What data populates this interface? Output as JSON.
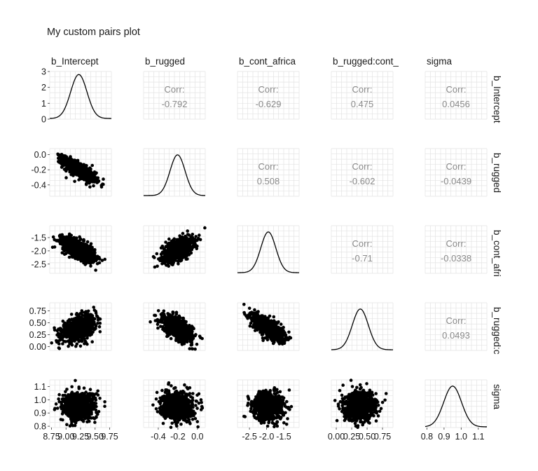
{
  "title": "My custom pairs plot",
  "variables": [
    "b_Intercept",
    "b_rugged",
    "b_cont_africa",
    "b_rugged:cont_africa",
    "sigma"
  ],
  "column_strips": [
    "b_Intercept",
    "b_rugged",
    "b_cont_africa",
    "b_rugged:cont_",
    "sigma"
  ],
  "row_strips": [
    "b_Intercept",
    "b_rugged",
    "b_cont_afri",
    "b_rugged:c",
    "sigma"
  ],
  "colors": {
    "points": "#000000",
    "grid": "#e3e3e3",
    "corr_text": "#8a8a8a",
    "text": "#1a1a1a"
  },
  "chart_data": {
    "type": "scatter",
    "subtype": "pairs-plot (scatter matrix)",
    "title": "My custom pairs plot",
    "diagonal": "density",
    "lower": "scatter",
    "upper": "correlation text",
    "grid": true,
    "corr_label": "Corr:",
    "axes": {
      "b_Intercept": {
        "range": [
          8.72,
          9.78
        ],
        "ticks": [
          8.75,
          9.0,
          9.25,
          9.5,
          9.75
        ],
        "tick_labels": [
          "8.75",
          "9.00",
          "9.25",
          "9.50",
          "9.75"
        ]
      },
      "b_rugged": {
        "range": [
          -0.55,
          0.08
        ],
        "ticks": [
          -0.4,
          -0.2,
          0.0
        ],
        "tick_labels": [
          "-0.4",
          "-0.2",
          "0.0"
        ]
      },
      "b_cont_africa": {
        "range": [
          -2.85,
          -1.05
        ],
        "ticks": [
          -2.5,
          -2.0,
          -1.5
        ],
        "tick_labels": [
          "-2.5",
          "-2.0",
          "-1.5"
        ]
      },
      "b_rugged:cont_africa": {
        "range": [
          -0.08,
          0.92
        ],
        "ticks": [
          0.0,
          0.25,
          0.5,
          0.75
        ],
        "tick_labels": [
          "0.00",
          "0.25",
          "0.50",
          "0.75"
        ]
      },
      "sigma": {
        "range": [
          0.79,
          1.15
        ],
        "ticks": [
          0.8,
          0.9,
          1.0,
          1.1
        ],
        "tick_labels": [
          "0.8",
          "0.9",
          "1.0",
          "1.1"
        ]
      }
    },
    "row_axes_labels": {
      "b_Intercept": {
        "ticks": [
          0,
          1,
          2,
          3
        ],
        "tick_labels": [
          "0",
          "1",
          "2",
          "3"
        ],
        "range": [
          0,
          3.0
        ]
      }
    },
    "marginals": [
      {
        "variable": "b_Intercept",
        "mean": 9.22,
        "sd": 0.14,
        "peak_density": 2.85
      },
      {
        "variable": "b_rugged",
        "mean": -0.203,
        "sd": 0.077
      },
      {
        "variable": "b_cont_africa",
        "mean": -1.95,
        "sd": 0.22
      },
      {
        "variable": "b_rugged:cont_africa",
        "mean": 0.39,
        "sd": 0.13
      },
      {
        "variable": "sigma",
        "mean": 0.95,
        "sd": 0.052
      }
    ],
    "correlations": [
      {
        "x": "b_Intercept",
        "y": "b_rugged",
        "value": "-0.792"
      },
      {
        "x": "b_Intercept",
        "y": "b_cont_africa",
        "value": "-0.629"
      },
      {
        "x": "b_Intercept",
        "y": "b_rugged:cont_africa",
        "value": "0.475"
      },
      {
        "x": "b_Intercept",
        "y": "sigma",
        "value": "0.0456"
      },
      {
        "x": "b_rugged",
        "y": "b_cont_africa",
        "value": "0.508"
      },
      {
        "x": "b_rugged",
        "y": "b_rugged:cont_africa",
        "value": "-0.602"
      },
      {
        "x": "b_rugged",
        "y": "sigma",
        "value": "-0.0439"
      },
      {
        "x": "b_cont_africa",
        "y": "b_rugged:cont_africa",
        "value": "-0.71"
      },
      {
        "x": "b_cont_africa",
        "y": "sigma",
        "value": "-0.0338"
      },
      {
        "x": "b_rugged:cont_africa",
        "y": "sigma",
        "value": "0.0493"
      }
    ]
  }
}
